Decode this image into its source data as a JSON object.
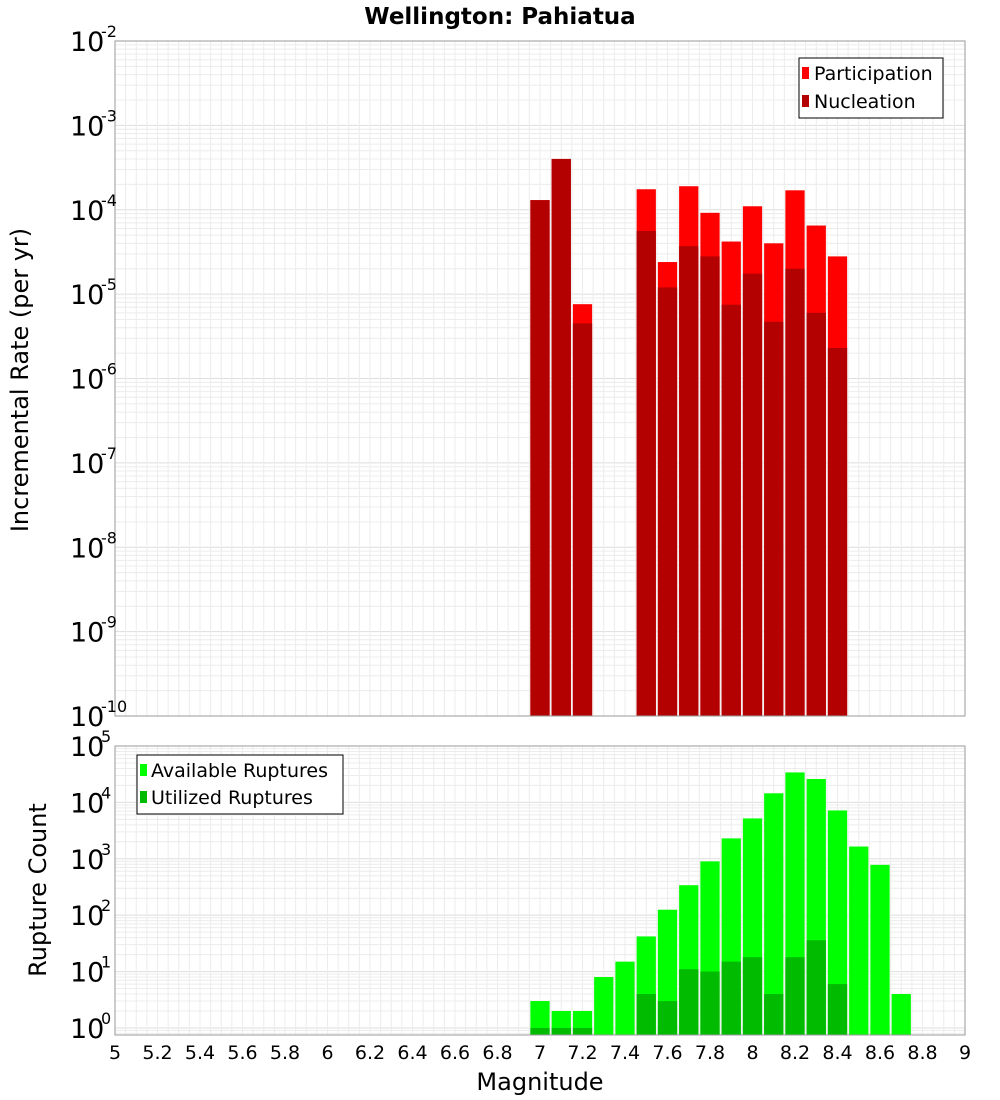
{
  "chart_data": [
    {
      "type": "bar",
      "title": "Wellington: Pahiatua",
      "ylabel": "Incremental Rate (per yr)",
      "xlabel": "",
      "y_scale": "log",
      "xlim": [
        5,
        9
      ],
      "ylim": [
        1e-10,
        0.01
      ],
      "y_ticks": [
        {
          "base": "10",
          "exp": "-10"
        },
        {
          "base": "10",
          "exp": "-9"
        },
        {
          "base": "10",
          "exp": "-8"
        },
        {
          "base": "10",
          "exp": "-7"
        },
        {
          "base": "10",
          "exp": "-6"
        },
        {
          "base": "10",
          "exp": "-5"
        },
        {
          "base": "10",
          "exp": "-4"
        },
        {
          "base": "10",
          "exp": "-3"
        },
        {
          "base": "10",
          "exp": "-2"
        }
      ],
      "grid": true,
      "legend_position": "top-right",
      "bin_width": 0.1,
      "series": [
        {
          "name": "Participation",
          "color": "#ff0000",
          "x": [
            7.0,
            7.1,
            7.2,
            7.5,
            7.6,
            7.7,
            7.8,
            7.9,
            8.0,
            8.1,
            8.2,
            8.3,
            8.4
          ],
          "values": [
            0.00013,
            0.0004,
            7.6e-06,
            0.000175,
            2.4e-05,
            0.00019,
            9.2e-05,
            4.2e-05,
            0.00011,
            4e-05,
            0.00017,
            6.5e-05,
            2.8e-05
          ]
        },
        {
          "name": "Nucleation",
          "color": "#b30000",
          "x": [
            7.0,
            7.1,
            7.2,
            7.5,
            7.6,
            7.7,
            7.8,
            7.9,
            8.0,
            8.1,
            8.2,
            8.3,
            8.4
          ],
          "values": [
            0.00013,
            0.0004,
            4.5e-06,
            5.6e-05,
            1.2e-05,
            3.7e-05,
            2.8e-05,
            7.5e-06,
            1.75e-05,
            4.7e-06,
            2e-05,
            6e-06,
            2.3e-06
          ]
        }
      ]
    },
    {
      "type": "bar",
      "title": "",
      "ylabel": "Rupture Count",
      "xlabel": "Magnitude",
      "y_scale": "log",
      "xlim": [
        5,
        9
      ],
      "ylim": [
        0.75,
        100000.0
      ],
      "x_ticks": [
        "5",
        "5.2",
        "5.4",
        "5.6",
        "5.8",
        "6",
        "6.2",
        "6.4",
        "6.6",
        "6.8",
        "7",
        "7.2",
        "7.4",
        "7.6",
        "7.8",
        "8",
        "8.2",
        "8.4",
        "8.6",
        "8.8",
        "9"
      ],
      "y_ticks": [
        {
          "base": "10",
          "exp": "0"
        },
        {
          "base": "10",
          "exp": "1"
        },
        {
          "base": "10",
          "exp": "2"
        },
        {
          "base": "10",
          "exp": "3"
        },
        {
          "base": "10",
          "exp": "4"
        },
        {
          "base": "10",
          "exp": "5"
        }
      ],
      "grid": true,
      "legend_position": "top-left",
      "bin_width": 0.1,
      "series": [
        {
          "name": "Available Ruptures",
          "color": "#00ff00",
          "x": [
            7.0,
            7.1,
            7.2,
            7.3,
            7.4,
            7.5,
            7.6,
            7.7,
            7.8,
            7.9,
            8.0,
            8.1,
            8.2,
            8.3,
            8.4,
            8.5,
            8.6,
            8.7
          ],
          "values": [
            3,
            2,
            2,
            8,
            15,
            42,
            125,
            340,
            900,
            2300,
            5200,
            14500,
            34000,
            26000,
            7200,
            1650,
            780,
            4
          ]
        },
        {
          "name": "Utilized Ruptures",
          "color": "#00bb00",
          "x": [
            7.0,
            7.1,
            7.2,
            7.5,
            7.6,
            7.7,
            7.8,
            7.9,
            8.0,
            8.1,
            8.2,
            8.3,
            8.4
          ],
          "values": [
            1,
            1,
            1,
            4,
            3,
            11,
            10,
            15,
            18,
            4,
            18,
            36,
            6
          ]
        }
      ]
    }
  ]
}
